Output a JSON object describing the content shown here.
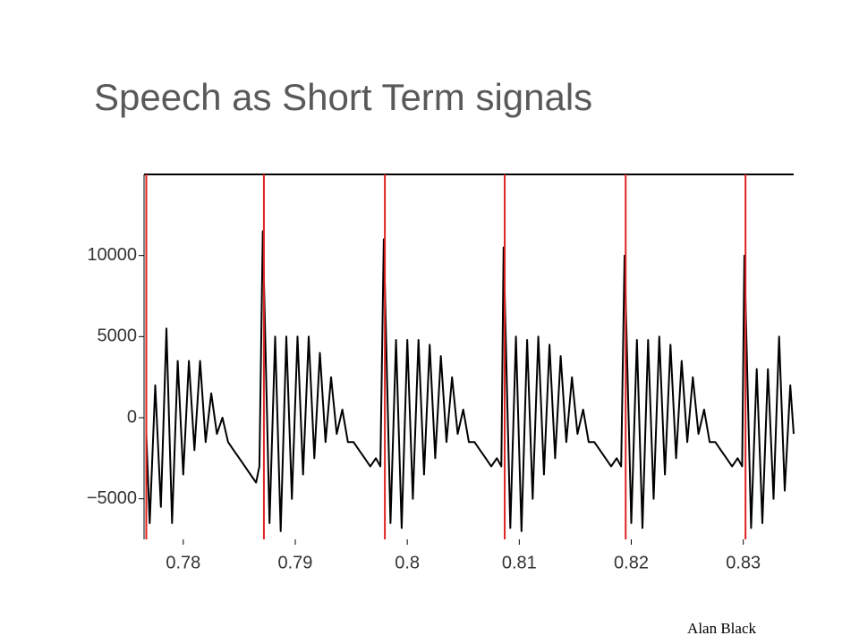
{
  "title": "Speech as Short Term signals",
  "footer": "Alan Black",
  "chart_data": {
    "type": "line",
    "x": [
      0.7767,
      0.777,
      0.7775,
      0.778,
      0.7785,
      0.779,
      0.7795,
      0.78,
      0.7805,
      0.781,
      0.7815,
      0.782,
      0.7825,
      0.783,
      0.7835,
      0.784,
      0.7845,
      0.785,
      0.7855,
      0.786,
      0.7865,
      0.7868,
      0.7871,
      0.7877,
      0.7882,
      0.7887,
      0.7892,
      0.7897,
      0.7902,
      0.7907,
      0.7912,
      0.7917,
      0.7922,
      0.7927,
      0.7932,
      0.7937,
      0.7942,
      0.7947,
      0.7952,
      0.7957,
      0.7962,
      0.7967,
      0.7972,
      0.7976,
      0.7979,
      0.7985,
      0.799,
      0.7995,
      0.8,
      0.8005,
      0.801,
      0.8015,
      0.802,
      0.8025,
      0.803,
      0.8035,
      0.804,
      0.8045,
      0.805,
      0.8055,
      0.806,
      0.8065,
      0.807,
      0.8075,
      0.808,
      0.8084,
      0.8086,
      0.8092,
      0.8097,
      0.8102,
      0.8107,
      0.8112,
      0.8117,
      0.8122,
      0.8127,
      0.8132,
      0.8137,
      0.8142,
      0.8147,
      0.8152,
      0.8157,
      0.8162,
      0.8167,
      0.8172,
      0.8177,
      0.8182,
      0.8187,
      0.8191,
      0.8194,
      0.82,
      0.8205,
      0.821,
      0.8215,
      0.822,
      0.8225,
      0.823,
      0.8235,
      0.824,
      0.8245,
      0.825,
      0.8255,
      0.826,
      0.8265,
      0.827,
      0.8275,
      0.828,
      0.8285,
      0.829,
      0.8295,
      0.8299,
      0.8301,
      0.8307,
      0.8312,
      0.8317,
      0.8322,
      0.8327,
      0.8332,
      0.8337,
      0.8342,
      0.8345
    ],
    "values": [
      -1000,
      -6500,
      2000,
      -5500,
      5500,
      -6500,
      3500,
      -3500,
      3500,
      -2000,
      3500,
      -1500,
      1500,
      -1000,
      0,
      -1500,
      -2000,
      -2500,
      -3000,
      -3500,
      -4000,
      -3000,
      11500,
      -6500,
      5000,
      -7000,
      5000,
      -5000,
      5000,
      -3500,
      5000,
      -2500,
      4000,
      -1500,
      2500,
      -1000,
      500,
      -1500,
      -1500,
      -2000,
      -2500,
      -3000,
      -2500,
      -3000,
      11000,
      -6500,
      4800,
      -6800,
      4800,
      -5000,
      4800,
      -3500,
      4500,
      -2500,
      3800,
      -1500,
      2500,
      -1000,
      500,
      -1500,
      -1500,
      -2000,
      -2500,
      -3000,
      -2500,
      -3000,
      10500,
      -6800,
      5000,
      -7000,
      4800,
      -5000,
      5000,
      -3500,
      4500,
      -2500,
      3800,
      -1500,
      2500,
      -1000,
      500,
      -1500,
      -1500,
      -2000,
      -2500,
      -3000,
      -2500,
      -3000,
      10000,
      -6500,
      4800,
      -6800,
      4800,
      -5000,
      5000,
      -3500,
      4500,
      -2500,
      3500,
      -1500,
      2500,
      -1000,
      500,
      -1500,
      -1500,
      -2000,
      -2500,
      -3000,
      -2500,
      -3000,
      10000,
      -6800,
      3000,
      -6500,
      3000,
      -5000,
      5000,
      -4500,
      2000,
      -1000
    ],
    "color": "#000000",
    "pitch_marks": [
      0.7767,
      0.7872,
      0.798,
      0.8087,
      0.8195,
      0.8302
    ],
    "pitch_mark_color": "#e02020",
    "xlim": [
      0.7765,
      0.8345
    ],
    "ylim": [
      -7500,
      15000
    ],
    "xticks": [
      0.78,
      0.79,
      0.8,
      0.81,
      0.82,
      0.83
    ],
    "yticks": [
      {
        "value": -5000,
        "label": "−5000"
      },
      0,
      5000,
      10000
    ]
  }
}
